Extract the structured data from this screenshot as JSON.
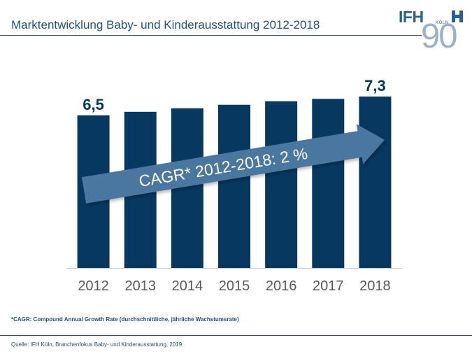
{
  "header": {
    "title": "Marktentwicklung Baby- und Kinderausstattung 2012-2018"
  },
  "logo": {
    "brand": "IFH",
    "city": "KÖLN",
    "anniversary": "90"
  },
  "chart_data": {
    "type": "bar",
    "title": "",
    "xlabel": "",
    "ylabel": "",
    "categories": [
      "2012",
      "2013",
      "2014",
      "2015",
      "2016",
      "2017",
      "2018"
    ],
    "values": [
      6.5,
      6.65,
      6.8,
      6.95,
      7.1,
      7.2,
      7.3
    ],
    "data_labels": [
      {
        "category": "2012",
        "text": "6,5"
      },
      {
        "category": "2018",
        "text": "7,3"
      }
    ],
    "annotation": "CAGR* 2012-2018: 2 %",
    "ylim": [
      0,
      7.3
    ],
    "grid": false,
    "colors": {
      "bar": "#07385f",
      "arrow": "#4a77a0",
      "axis": "#c8c8c8",
      "text_dark": "#07385f",
      "tick": "#595959"
    }
  },
  "footnote": "*CAGR: Compound Annual Growth Rate (durchschnittliche, jährliche Wachstumsrate)",
  "source": "Quelle: IFH Köln, Branchenfokus Baby- und Kinderausstattung, 2019"
}
